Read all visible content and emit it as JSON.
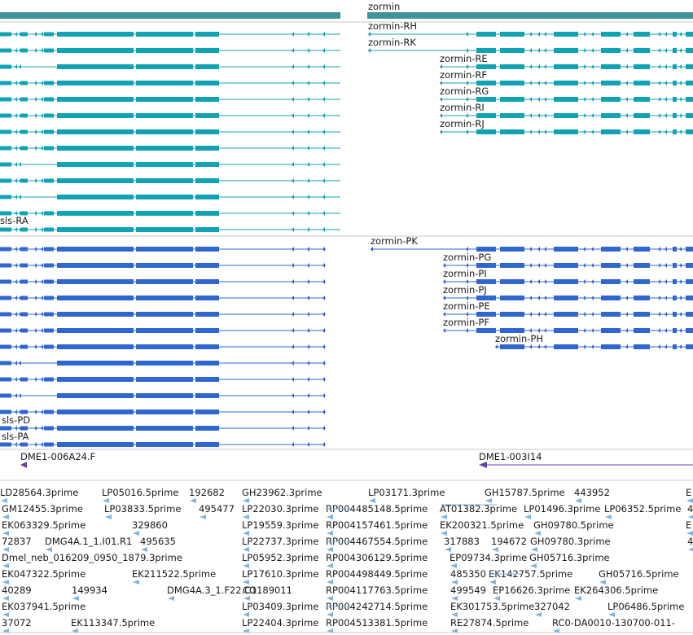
{
  "colors": {
    "gene": "#3e9499",
    "transcript": "#10a3b3",
    "protein": "#2f66cf",
    "clone": "#6a3fa8",
    "est": "#7fb5e0",
    "separator": "#c9c9c9"
  },
  "gene_track": {
    "label": "zormin"
  },
  "transcripts_right": [
    {
      "label": "zormin-RH"
    },
    {
      "label": "zormin-RK"
    },
    {
      "label": "zormin-RE"
    },
    {
      "label": "zormin-RF"
    },
    {
      "label": "zormin-RG"
    },
    {
      "label": "zormin-RI"
    },
    {
      "label": "zormin-RJ"
    }
  ],
  "transcripts_left": [
    {
      "label": "sls-RA"
    }
  ],
  "proteins_right": [
    {
      "label": "zormin-PK"
    },
    {
      "label": "zormin-PG"
    },
    {
      "label": "zormin-PI"
    },
    {
      "label": "zormin-PJ"
    },
    {
      "label": "zormin-PE"
    },
    {
      "label": "zormin-PF"
    },
    {
      "label": "zormin-PH"
    }
  ],
  "proteins_left": [
    {
      "label": "sls-PD"
    },
    {
      "label": "sls-PA"
    }
  ],
  "clones": [
    {
      "label": "DME1-006A24.F"
    },
    {
      "label": "DME1-003I14"
    }
  ],
  "ests": [
    {
      "label": "LD28564.3prime"
    },
    {
      "label": "LP05016.5prime"
    },
    {
      "label": "192682"
    },
    {
      "label": "GH23962.3prime"
    },
    {
      "label": "LP03171.3prime"
    },
    {
      "label": "GH15787.5prime"
    },
    {
      "label": "443952"
    },
    {
      "label": "E"
    },
    {
      "label": "GM12455.3prime"
    },
    {
      "label": "LP03833.5prime"
    },
    {
      "label": "495477"
    },
    {
      "label": "LP22030.3prime"
    },
    {
      "label": "RP004485148.5prime"
    },
    {
      "label": "AT01382.3prime"
    },
    {
      "label": "LP01496.3prime"
    },
    {
      "label": "LP06352.5prime"
    },
    {
      "label": "4"
    },
    {
      "label": "EK063329.5prime"
    },
    {
      "label": "329860"
    },
    {
      "label": "LP19559.3prime"
    },
    {
      "label": "RP004157461.5prime"
    },
    {
      "label": "EK200321.5prime"
    },
    {
      "label": "GH09780.5prime"
    },
    {
      "label": "E"
    },
    {
      "label": "72837"
    },
    {
      "label": "DMG4A.1_1.I01.R1"
    },
    {
      "label": "495635"
    },
    {
      "label": "LP22737.3prime"
    },
    {
      "label": "RP004467554.5prime"
    },
    {
      "label": "317883"
    },
    {
      "label": "194672"
    },
    {
      "label": "GH09780.3prime"
    },
    {
      "label": "4"
    },
    {
      "label": "Dmel_neb_016209_0950_1879.3prime"
    },
    {
      "label": "LP05952.3prime"
    },
    {
      "label": "RP004306129.5prime"
    },
    {
      "label": "EP09734.3prime"
    },
    {
      "label": "GH05716.3prime"
    },
    {
      "label": "EK047322.5prime"
    },
    {
      "label": "EK211522.5prime"
    },
    {
      "label": "LP17610.3prime"
    },
    {
      "label": "RP004498449.5prime"
    },
    {
      "label": "485350"
    },
    {
      "label": "EK142757.5prime"
    },
    {
      "label": "GH05716.5prime"
    },
    {
      "label": "40289"
    },
    {
      "label": "149934"
    },
    {
      "label": "DMG4A.3_1.F22.C1"
    },
    {
      "label": "CO189011"
    },
    {
      "label": "RP004117763.5prime"
    },
    {
      "label": "499549"
    },
    {
      "label": "EP16626.3prime"
    },
    {
      "label": "EK264306.5prime"
    },
    {
      "label": "EK037941.5prime"
    },
    {
      "label": "LP03409.3prime"
    },
    {
      "label": "RP004242714.5prime"
    },
    {
      "label": "EK301753.5prime"
    },
    {
      "label": "327042"
    },
    {
      "label": "LP06486.5prime"
    },
    {
      "label": "37072"
    },
    {
      "label": "EK113347.5prime"
    },
    {
      "label": "LP22404.3prime"
    },
    {
      "label": "RP004513381.5prime"
    },
    {
      "label": "RE27874.5prime"
    },
    {
      "label": "RC0-DA0010-130700-011-"
    }
  ]
}
